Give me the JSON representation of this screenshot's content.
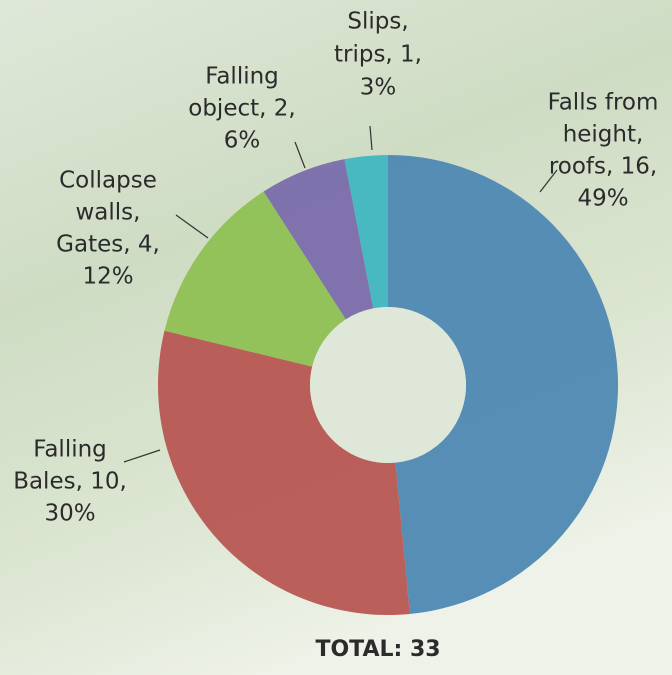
{
  "chart_data": {
    "type": "pie",
    "labels": [
      [
        "Falls from",
        "height,",
        "roofs, 16,",
        "49%"
      ],
      [
        "Falling",
        "Bales, 10,",
        "30%"
      ],
      [
        "Collapse",
        "walls,",
        "Gates, 4,",
        "12%"
      ],
      [
        "Falling",
        "object, 2,",
        "6%"
      ],
      [
        "Slips,",
        "trips, 1,",
        "3%"
      ]
    ],
    "values": [
      16,
      10,
      4,
      2,
      1
    ],
    "colors": [
      "#4a86b2",
      "#b6524e",
      "#8dbf50",
      "#7768aa",
      "#3db5c0"
    ],
    "hole": true,
    "annotation": "TOTAL: 33"
  }
}
